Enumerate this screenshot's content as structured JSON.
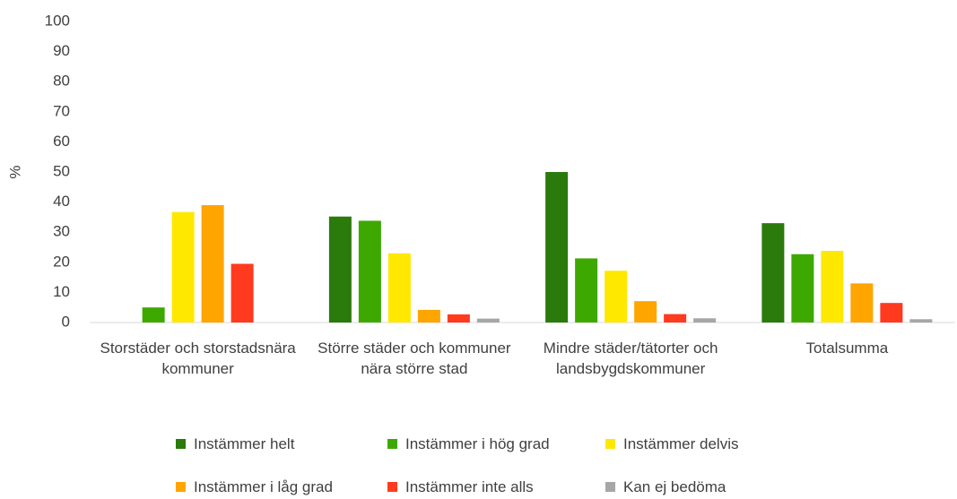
{
  "chart_data": {
    "type": "bar",
    "ylabel": "%",
    "categories": [
      "Storstäder och storstadsnära kommuner",
      "Större städer och kommuner nära större stad",
      "Mindre städer/tätorter och landsbygdskommuner",
      "Totalsumma"
    ],
    "series": [
      {
        "name": "Instämmer helt",
        "color": "#2a7a0c",
        "values": [
          0,
          35.2,
          50,
          33
        ]
      },
      {
        "name": "Instämmer i hög grad",
        "color": "#3da800",
        "values": [
          5,
          33.8,
          21.3,
          22.7
        ]
      },
      {
        "name": "Instämmer delvis",
        "color": "#ffe800",
        "values": [
          36.7,
          23,
          17.2,
          23.8
        ]
      },
      {
        "name": "Instämmer i låg grad",
        "color": "#ffa500",
        "values": [
          39,
          4.2,
          7.1,
          13
        ]
      },
      {
        "name": "Instämmer inte alls",
        "color": "#ff3a1f",
        "values": [
          19.5,
          2.7,
          2.8,
          6.5
        ]
      },
      {
        "name": "Kan ej bedöma",
        "color": "#a6a6a6",
        "values": [
          0,
          1.3,
          1.4,
          1.1
        ]
      }
    ],
    "ylim": [
      0,
      100
    ],
    "yticks": [
      0,
      10,
      20,
      30,
      40,
      50,
      60,
      70,
      80,
      90,
      100
    ],
    "grid": false
  }
}
